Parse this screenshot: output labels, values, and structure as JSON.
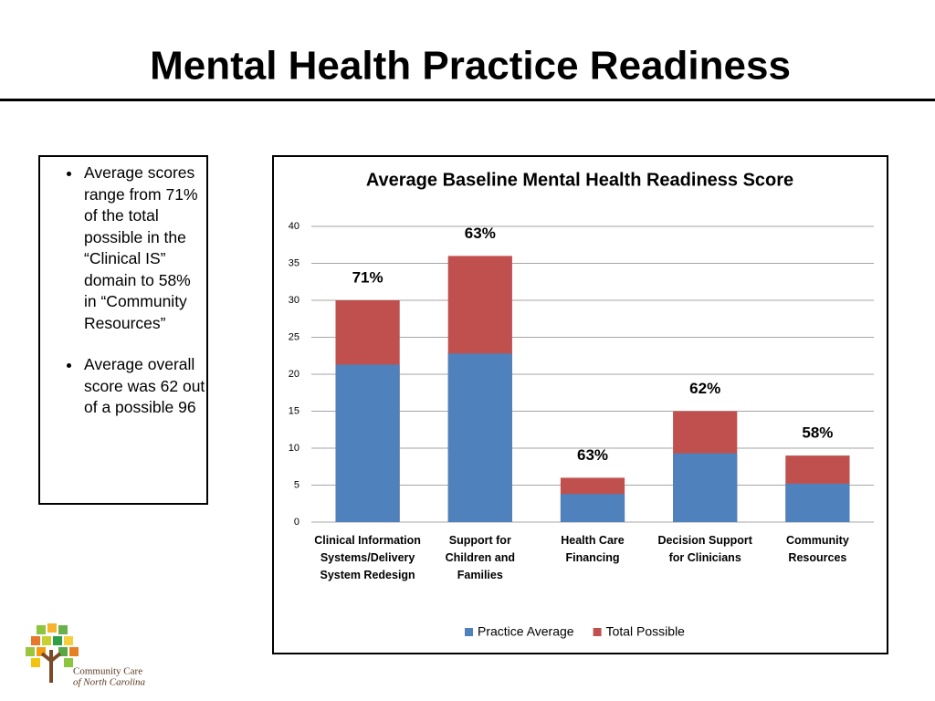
{
  "slide_title": "Mental Health Practice Readiness",
  "bullets": [
    "Average scores range from 71% of the total possible in the “Clinical IS” domain to 58% in “Community Resources”",
    "Average overall  score was 62 out of a possible 96"
  ],
  "logo": {
    "line1": "Community Care",
    "line2": "of North Carolina"
  },
  "chart_data": {
    "type": "bar",
    "layout": "overlap",
    "title": "Average Baseline Mental Health Readiness Score",
    "categories": [
      "Clinical Information Systems/Delivery System Redesign",
      "Support for Children and Families",
      "Health Care Financing",
      "Decision Support for Clinicians",
      "Community Resources"
    ],
    "series": [
      {
        "name": "Practice Average",
        "color": "#4f81bd",
        "values": [
          21.3,
          22.8,
          3.8,
          9.3,
          5.2
        ]
      },
      {
        "name": "Total Possible",
        "color": "#c0504d",
        "values": [
          30,
          36,
          6,
          15,
          9
        ]
      }
    ],
    "annotations": [
      "71%",
      "63%",
      "63%",
      "62%",
      "58%"
    ],
    "ylim": [
      0,
      40
    ],
    "yticks": [
      0,
      5,
      10,
      15,
      20,
      25,
      30,
      35,
      40
    ],
    "grid": true,
    "legend": "bottom"
  }
}
